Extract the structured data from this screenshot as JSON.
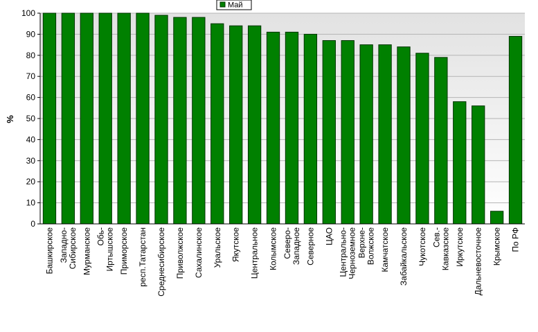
{
  "chart_data": {
    "type": "bar",
    "title": "",
    "xlabel": "",
    "ylabel": "%",
    "ylim": [
      0,
      100
    ],
    "yticks": [
      0,
      10,
      20,
      30,
      40,
      50,
      60,
      70,
      80,
      90,
      100
    ],
    "grid": true,
    "legend_position": "top-center",
    "categories": [
      "Башкирское",
      "Западно-Сибирское",
      "Мурманское",
      "Обь-Иртышское",
      "Приморское",
      "респ.Татарстан",
      "Среднесибирское",
      "Приволжское",
      "Сахалинское",
      "Уральское",
      "Якутское",
      "Центральное",
      "Колымское",
      "Северо-Западное",
      "Северное",
      "ЦАО",
      "Центрально-Черноземное",
      "Верхне-Волжское",
      "Камчатское",
      "Забайкальское",
      "Чукотское",
      "Сев.-Кавказское",
      "Иркутское",
      "Дальневосточное",
      "Крымское",
      "По РФ"
    ],
    "category_lines": [
      [
        "Башкирское"
      ],
      [
        "Западно-",
        "Сибирское"
      ],
      [
        "Мурманское"
      ],
      [
        "Обь-",
        "Иртышское"
      ],
      [
        "Приморское"
      ],
      [
        "респ.Татарстан"
      ],
      [
        "Среднесибирское"
      ],
      [
        "Приволжское"
      ],
      [
        "Сахалинское"
      ],
      [
        "Уральское"
      ],
      [
        "Якутское"
      ],
      [
        "Центральное"
      ],
      [
        "Колымское"
      ],
      [
        "Северо-",
        "Западное"
      ],
      [
        "Северное"
      ],
      [
        "ЦАО"
      ],
      [
        "Центрально-",
        "Черноземное"
      ],
      [
        "Верхне-",
        "Волжское"
      ],
      [
        "Камчатское"
      ],
      [
        "Забайкальское"
      ],
      [
        "Чукотское"
      ],
      [
        "Сев.-",
        "Кавказское"
      ],
      [
        "Иркутское"
      ],
      [
        "Дальневосточное"
      ],
      [
        "Крымское"
      ],
      [
        "По РФ"
      ]
    ],
    "series": [
      {
        "name": "Май",
        "color": "#008000",
        "values": [
          100,
          100,
          100,
          100,
          100,
          100,
          99,
          98,
          98,
          95,
          94,
          94,
          91,
          91,
          90,
          87,
          87,
          85,
          85,
          84,
          81,
          79,
          58,
          56,
          6,
          89
        ]
      }
    ]
  },
  "colors": {
    "bar_fill": "#008000",
    "bar_stroke": "#003300",
    "plot_background_top": "#e6e6e6",
    "plot_background_bottom": "#ffffff",
    "gridline": "#b4b4b4"
  }
}
